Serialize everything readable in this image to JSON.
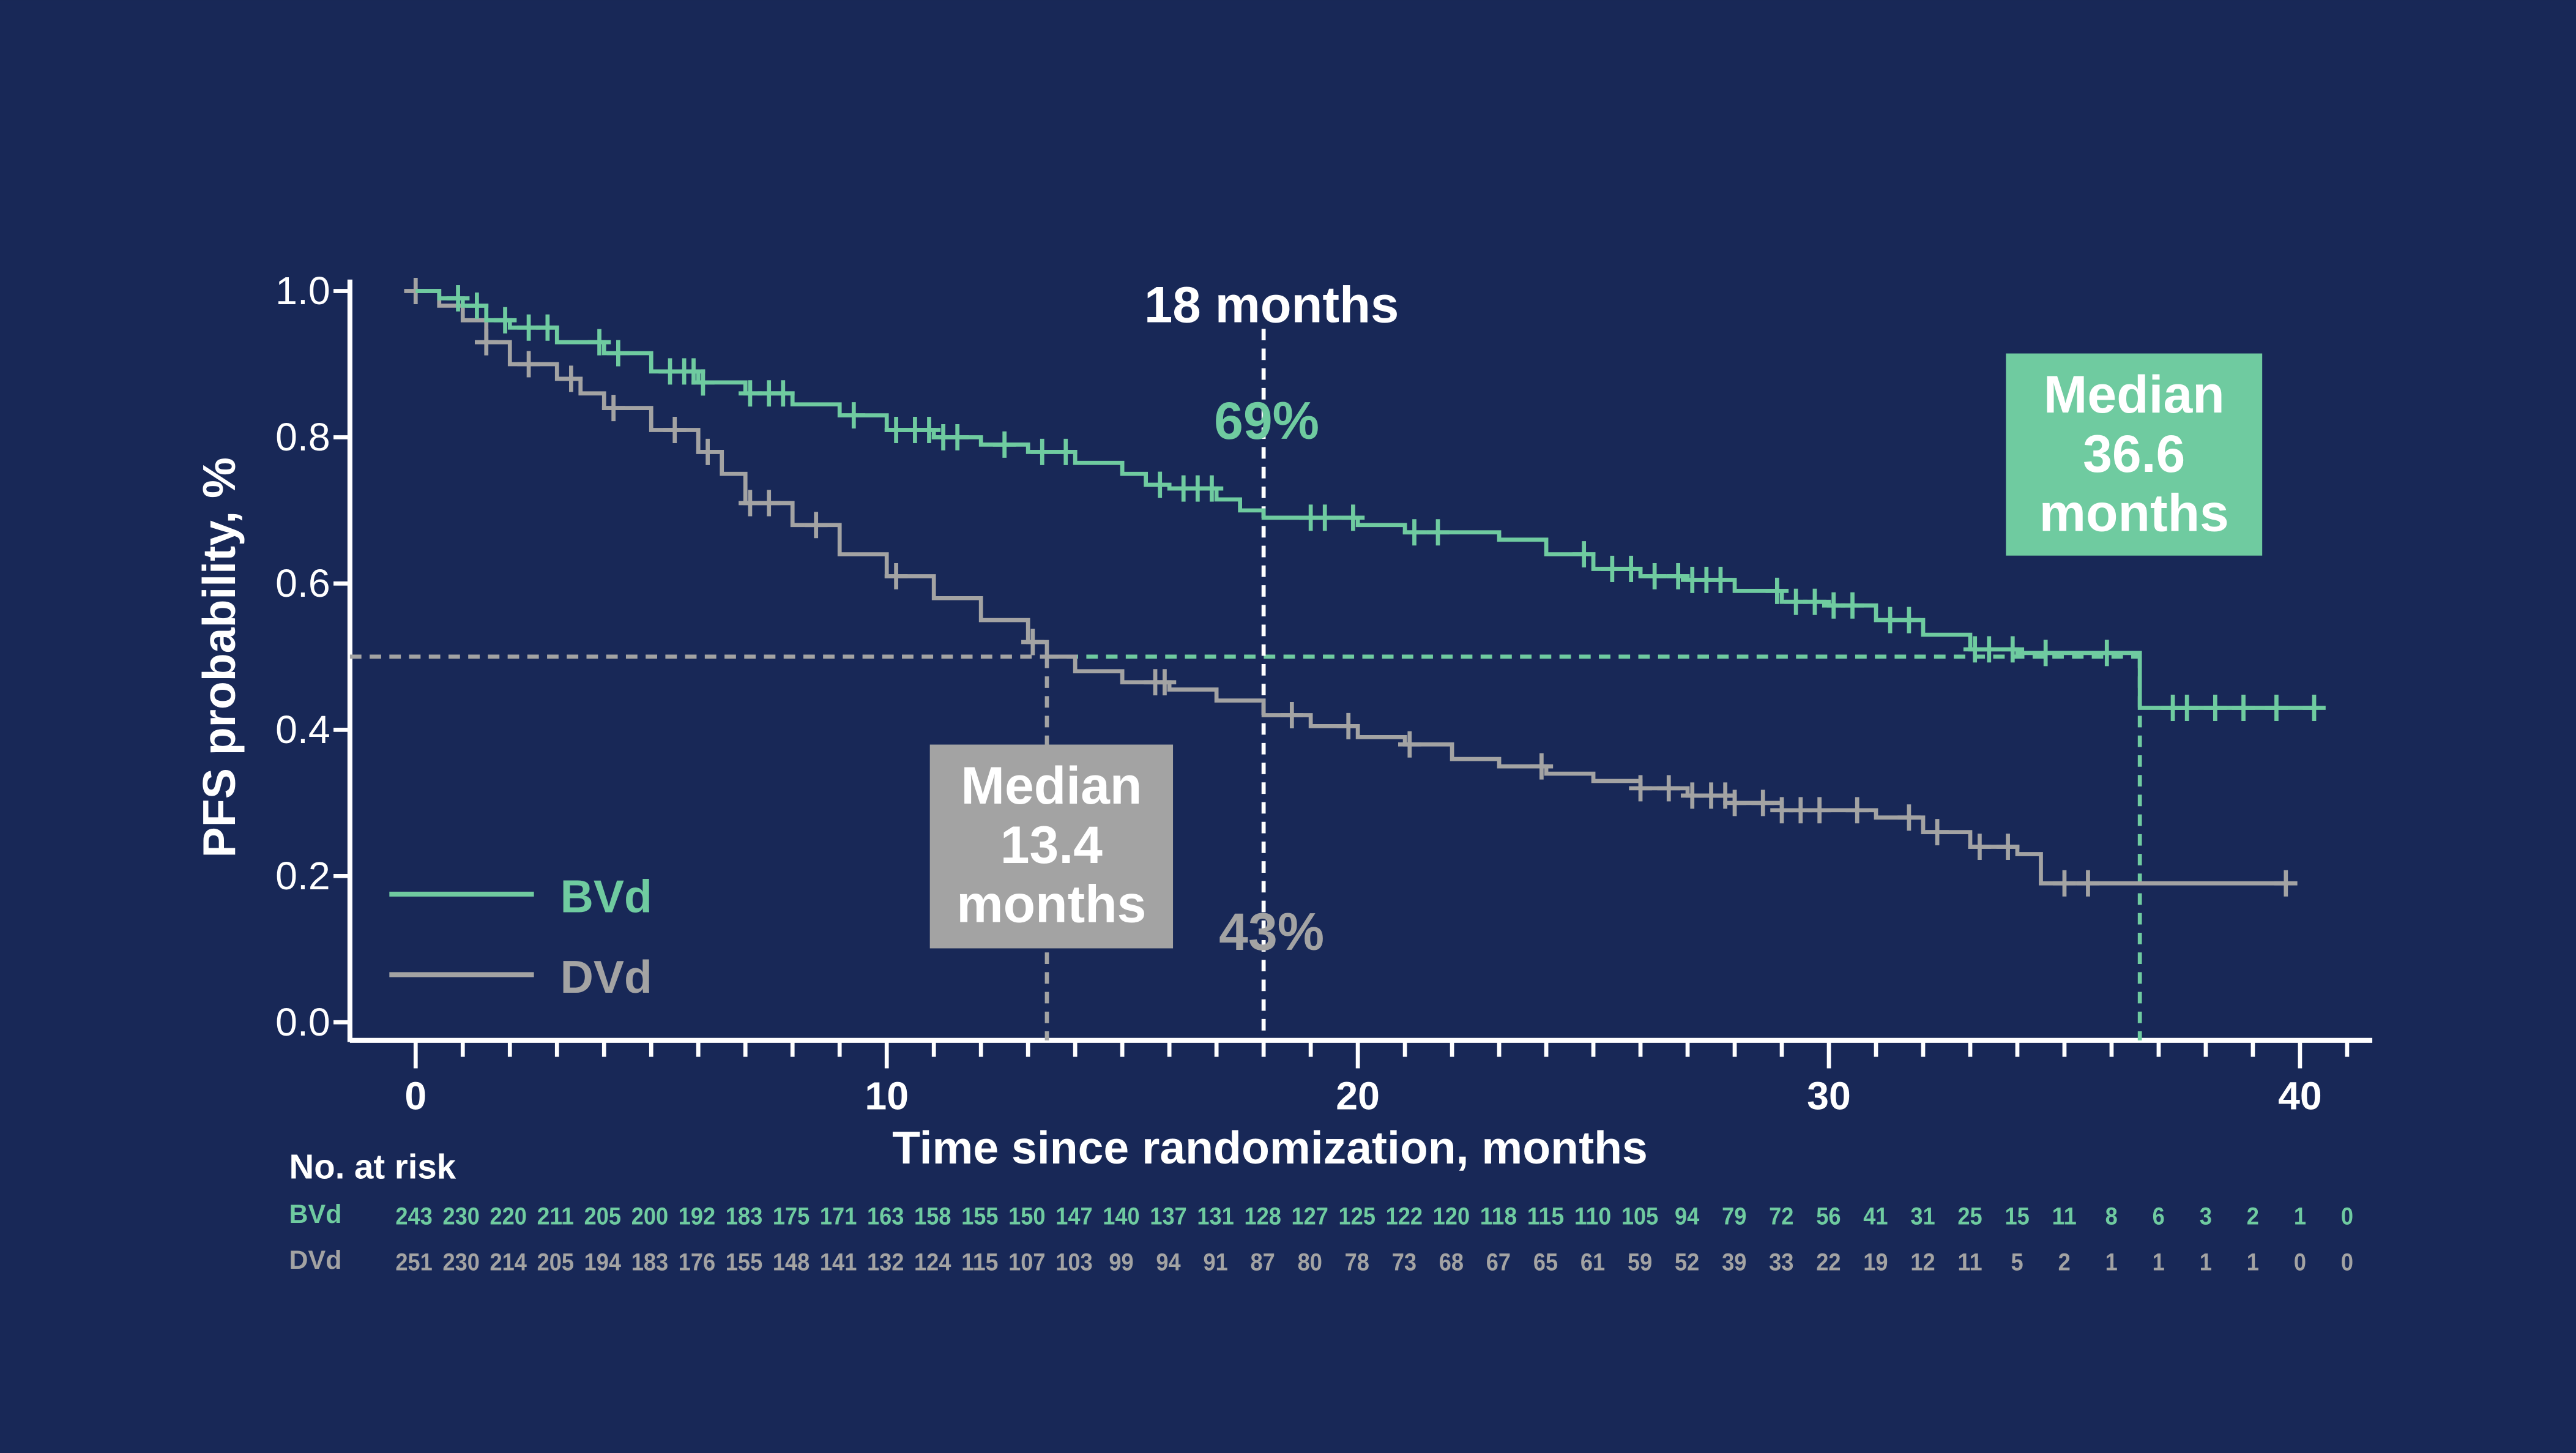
{
  "colors": {
    "background": "#182857",
    "bvd": "#6fcba0",
    "dvd": "#a3a3a3",
    "axis": "#ffffff"
  },
  "chart_data": {
    "type": "line",
    "subtype": "kaplan-meier",
    "xlabel": "Time since randomization, months",
    "ylabel": "PFS probability, %",
    "xlim": [
      0,
      40
    ],
    "ylim": [
      0,
      1
    ],
    "xticks": [
      "0",
      "10",
      "20",
      "30",
      "40"
    ],
    "yticks": [
      "0.0",
      "0.2",
      "0.4",
      "0.6",
      "0.8",
      "1.0"
    ],
    "legend_position": "bottom-left",
    "grid": false,
    "series": [
      {
        "name": "BVd",
        "color": "#6fcba0",
        "steps": [
          [
            0,
            1
          ],
          [
            0.5,
            0.99
          ],
          [
            1,
            0.98
          ],
          [
            1.5,
            0.96
          ],
          [
            2,
            0.95
          ],
          [
            3,
            0.93
          ],
          [
            4,
            0.915
          ],
          [
            5,
            0.89
          ],
          [
            6,
            0.875
          ],
          [
            7,
            0.86
          ],
          [
            8,
            0.845
          ],
          [
            9,
            0.83
          ],
          [
            10,
            0.81
          ],
          [
            11,
            0.8
          ],
          [
            12,
            0.79
          ],
          [
            13,
            0.78
          ],
          [
            14,
            0.765
          ],
          [
            15,
            0.75
          ],
          [
            15.5,
            0.735
          ],
          [
            16,
            0.73
          ],
          [
            17,
            0.715
          ],
          [
            17.5,
            0.7
          ],
          [
            18,
            0.69
          ],
          [
            20,
            0.68
          ],
          [
            21,
            0.67
          ],
          [
            23,
            0.66
          ],
          [
            24,
            0.64
          ],
          [
            25,
            0.62
          ],
          [
            26,
            0.61
          ],
          [
            27,
            0.605
          ],
          [
            28,
            0.59
          ],
          [
            29,
            0.575
          ],
          [
            30,
            0.57
          ],
          [
            31,
            0.55
          ],
          [
            32,
            0.53
          ],
          [
            33,
            0.51
          ],
          [
            34,
            0.505
          ],
          [
            36.6,
            0.43
          ],
          [
            40.3,
            0.43
          ]
        ],
        "censored": [
          0.9,
          1.3,
          1.9,
          2.4,
          2.8,
          3.9,
          4.3,
          5.4,
          5.7,
          5.9,
          6.1,
          7.1,
          7.5,
          7.8,
          9.3,
          10.2,
          10.6,
          10.9,
          11.2,
          11.5,
          12.5,
          13.3,
          13.8,
          15.8,
          16.3,
          16.6,
          16.9,
          19.0,
          19.3,
          19.9,
          21.2,
          21.7,
          24.8,
          25.4,
          25.8,
          26.3,
          26.8,
          27.1,
          27.4,
          27.7,
          28.9,
          29.3,
          29.7,
          30.1,
          30.5,
          31.3,
          31.7,
          33.1,
          33.4,
          33.9,
          34.6,
          35.9,
          37.3,
          37.6,
          38.2,
          38.8,
          39.5,
          40.3
        ]
      },
      {
        "name": "DVd",
        "color": "#a3a3a3",
        "steps": [
          [
            0,
            1
          ],
          [
            0.5,
            0.98
          ],
          [
            1,
            0.96
          ],
          [
            1.5,
            0.93
          ],
          [
            2,
            0.9
          ],
          [
            3,
            0.88
          ],
          [
            3.5,
            0.86
          ],
          [
            4,
            0.84
          ],
          [
            5,
            0.81
          ],
          [
            6,
            0.78
          ],
          [
            6.5,
            0.75
          ],
          [
            7,
            0.71
          ],
          [
            8,
            0.68
          ],
          [
            9,
            0.64
          ],
          [
            10,
            0.61
          ],
          [
            11,
            0.58
          ],
          [
            12,
            0.55
          ],
          [
            13,
            0.52
          ],
          [
            13.4,
            0.5
          ],
          [
            14,
            0.48
          ],
          [
            15,
            0.465
          ],
          [
            16,
            0.455
          ],
          [
            17,
            0.44
          ],
          [
            18,
            0.42
          ],
          [
            19,
            0.405
          ],
          [
            20,
            0.39
          ],
          [
            21,
            0.38
          ],
          [
            22,
            0.36
          ],
          [
            23,
            0.35
          ],
          [
            24,
            0.34
          ],
          [
            25,
            0.33
          ],
          [
            26,
            0.32
          ],
          [
            27,
            0.31
          ],
          [
            28,
            0.3
          ],
          [
            29,
            0.29
          ],
          [
            31,
            0.28
          ],
          [
            32,
            0.26
          ],
          [
            33,
            0.24
          ],
          [
            34,
            0.23
          ],
          [
            34.5,
            0.19
          ],
          [
            39.7,
            0.19
          ]
        ],
        "censored": [
          0,
          1.5,
          2.4,
          3.3,
          4.2,
          5.5,
          6.2,
          7.1,
          7.5,
          8.5,
          10.2,
          13.1,
          15.7,
          15.9,
          18.6,
          19.8,
          21.1,
          23.9,
          26.0,
          26.6,
          27.1,
          27.5,
          27.8,
          28.0,
          28.6,
          29.0,
          29.4,
          29.8,
          30.6,
          31.7,
          32.3,
          33.2,
          33.8,
          35.0,
          35.5,
          39.7
        ]
      }
    ],
    "annotations": {
      "landmark_label": "18 months",
      "bvd_landmark": "69%",
      "dvd_landmark": "43%",
      "bvd_median": [
        "Median",
        "36.6",
        "months"
      ],
      "dvd_median": [
        "Median",
        "13.4",
        "months"
      ]
    },
    "risk_table": {
      "title": "No. at risk",
      "times": [
        0,
        1,
        2,
        3,
        4,
        5,
        6,
        7,
        8,
        9,
        10,
        11,
        12,
        13,
        14,
        15,
        16,
        17,
        18,
        19,
        20,
        21,
        22,
        23,
        24,
        25,
        26,
        27,
        28,
        29,
        30,
        31,
        32,
        33,
        34,
        35,
        36,
        37,
        38,
        39,
        40,
        41
      ],
      "rows": [
        {
          "label": "BVd",
          "values": [
            243,
            230,
            220,
            211,
            205,
            200,
            192,
            183,
            175,
            171,
            163,
            158,
            155,
            150,
            147,
            140,
            137,
            131,
            128,
            127,
            125,
            122,
            120,
            118,
            115,
            110,
            105,
            94,
            79,
            72,
            56,
            41,
            31,
            25,
            15,
            11,
            8,
            6,
            3,
            2,
            1,
            0
          ]
        },
        {
          "label": "DVd",
          "values": [
            251,
            230,
            214,
            205,
            194,
            183,
            176,
            155,
            148,
            141,
            132,
            124,
            115,
            107,
            103,
            99,
            94,
            91,
            87,
            80,
            78,
            73,
            68,
            67,
            65,
            61,
            59,
            52,
            39,
            33,
            22,
            19,
            12,
            11,
            5,
            2,
            1,
            1,
            1,
            1,
            0,
            0
          ]
        }
      ]
    }
  }
}
